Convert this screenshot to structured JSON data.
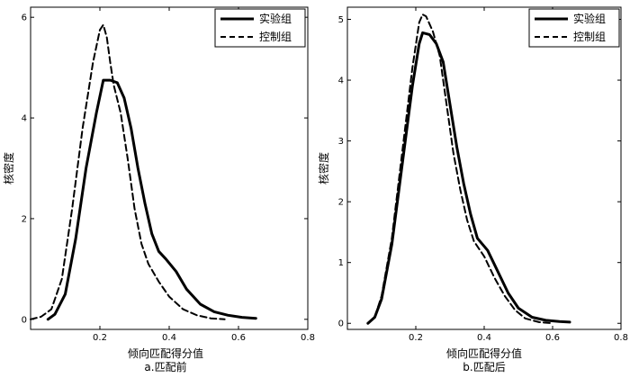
{
  "chart_data": [
    {
      "type": "line",
      "caption": "a.匹配前",
      "xlabel": "倾向匹配得分值",
      "ylabel": "核密度",
      "xlim": [
        0.0,
        0.8
      ],
      "ylim": [
        -0.2,
        6.2
      ],
      "xticks": [
        0.2,
        0.4,
        0.6,
        0.8
      ],
      "xtick_labels": [
        "0.2",
        "0.4",
        "0.6",
        "0.8"
      ],
      "yticks": [
        0,
        2,
        4,
        6
      ],
      "ytick_labels": [
        "0",
        "2",
        "4",
        "6"
      ],
      "grid": false,
      "legend_position": "top-right",
      "series": [
        {
          "name": "实验组",
          "style": "solid",
          "x": [
            0.05,
            0.07,
            0.1,
            0.13,
            0.16,
            0.19,
            0.21,
            0.23,
            0.25,
            0.27,
            0.29,
            0.31,
            0.33,
            0.35,
            0.37,
            0.39,
            0.42,
            0.45,
            0.49,
            0.53,
            0.57,
            0.61,
            0.65
          ],
          "y": [
            0.0,
            0.1,
            0.5,
            1.6,
            3.0,
            4.1,
            4.75,
            4.75,
            4.7,
            4.4,
            3.8,
            3.0,
            2.3,
            1.7,
            1.35,
            1.2,
            0.95,
            0.6,
            0.3,
            0.15,
            0.08,
            0.04,
            0.02
          ]
        },
        {
          "name": "控制组",
          "style": "dashed",
          "x": [
            0.0,
            0.03,
            0.06,
            0.09,
            0.12,
            0.15,
            0.18,
            0.2,
            0.21,
            0.22,
            0.23,
            0.24,
            0.26,
            0.28,
            0.3,
            0.32,
            0.34,
            0.37,
            0.4,
            0.44,
            0.48,
            0.52,
            0.56
          ],
          "y": [
            0.0,
            0.05,
            0.2,
            0.8,
            2.2,
            3.8,
            5.1,
            5.75,
            5.85,
            5.6,
            5.1,
            4.65,
            4.1,
            3.2,
            2.2,
            1.5,
            1.1,
            0.75,
            0.45,
            0.2,
            0.08,
            0.02,
            0.0
          ]
        }
      ]
    },
    {
      "type": "line",
      "caption": "b.匹配后",
      "xlabel": "倾向匹配得分值",
      "ylabel": "核密度",
      "xlim": [
        0.0,
        0.8
      ],
      "ylim": [
        -0.1,
        5.2
      ],
      "xticks": [
        0.2,
        0.4,
        0.6,
        0.8
      ],
      "xtick_labels": [
        "0.2",
        "0.4",
        "0.6",
        "0.8"
      ],
      "yticks": [
        0,
        1,
        2,
        3,
        4,
        5
      ],
      "ytick_labels": [
        "0",
        "1",
        "2",
        "3",
        "4",
        "5"
      ],
      "grid": false,
      "legend_position": "top-right",
      "series": [
        {
          "name": "实验组",
          "style": "solid",
          "x": [
            0.06,
            0.08,
            0.1,
            0.13,
            0.16,
            0.19,
            0.21,
            0.22,
            0.24,
            0.26,
            0.28,
            0.3,
            0.32,
            0.34,
            0.36,
            0.38,
            0.41,
            0.44,
            0.47,
            0.5,
            0.54,
            0.58,
            0.62,
            0.65
          ],
          "y": [
            0.0,
            0.1,
            0.4,
            1.3,
            2.6,
            3.9,
            4.6,
            4.78,
            4.75,
            4.6,
            4.3,
            3.6,
            2.9,
            2.3,
            1.8,
            1.4,
            1.2,
            0.85,
            0.5,
            0.25,
            0.1,
            0.05,
            0.03,
            0.02
          ]
        },
        {
          "name": "控制组",
          "style": "dashed",
          "x": [
            0.06,
            0.08,
            0.1,
            0.13,
            0.16,
            0.19,
            0.21,
            0.22,
            0.23,
            0.25,
            0.27,
            0.29,
            0.31,
            0.33,
            0.35,
            0.37,
            0.4,
            0.43,
            0.46,
            0.49,
            0.52,
            0.56,
            0.6
          ],
          "y": [
            0.0,
            0.1,
            0.45,
            1.4,
            2.8,
            4.2,
            4.95,
            5.08,
            5.05,
            4.8,
            4.4,
            3.6,
            2.8,
            2.2,
            1.7,
            1.35,
            1.1,
            0.75,
            0.45,
            0.22,
            0.08,
            0.02,
            0.0
          ]
        }
      ]
    }
  ]
}
